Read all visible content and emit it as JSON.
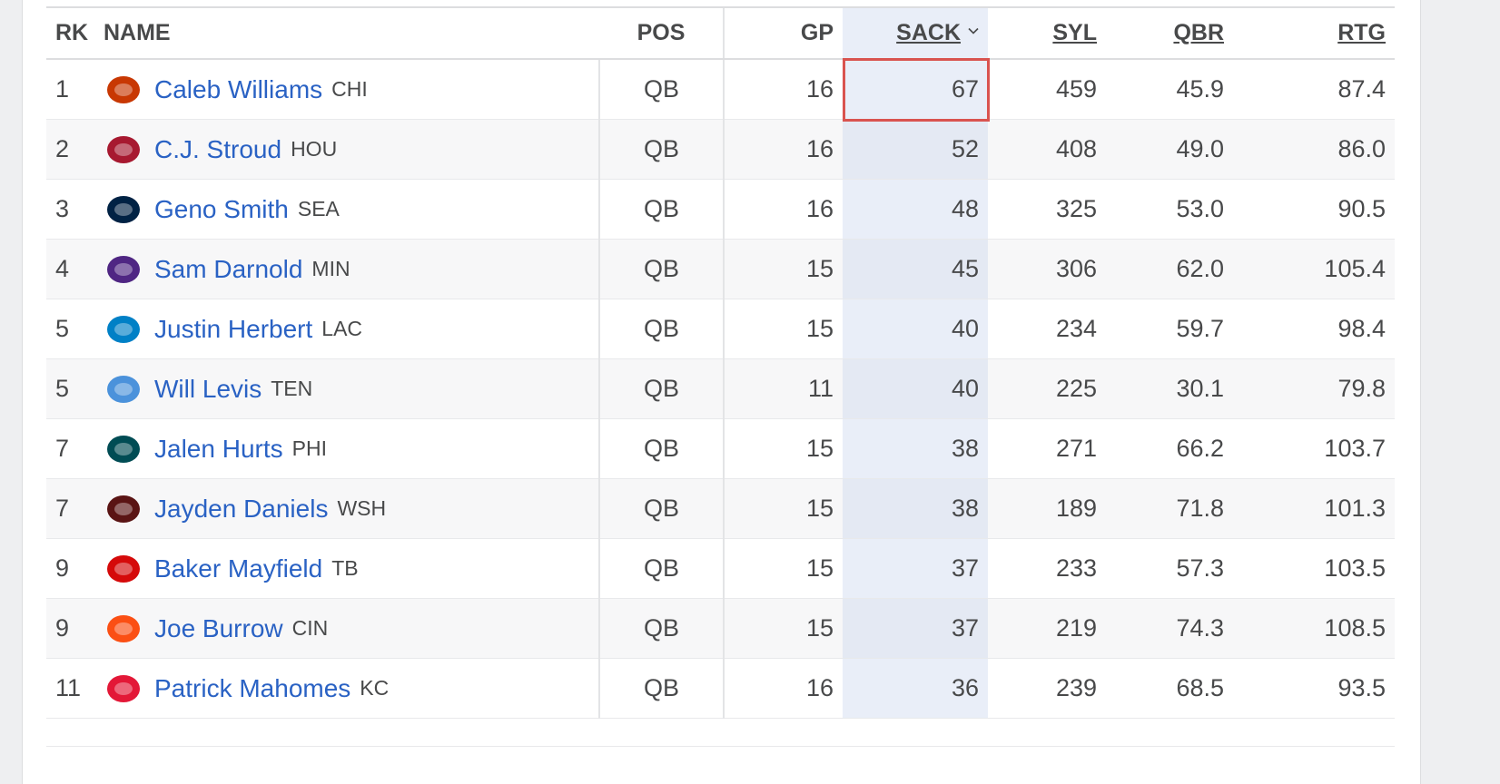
{
  "columns": {
    "rk": "RK",
    "name": "NAME",
    "pos": "POS",
    "gp": "GP",
    "sack": "SACK",
    "syl": "SYL",
    "qbr": "QBR",
    "rtg": "RTG"
  },
  "rows": [
    {
      "rk": "1",
      "player": "Caleb Williams",
      "team": "CHI",
      "pos": "QB",
      "gp": "16",
      "sack": "67",
      "syl": "459",
      "qbr": "45.9",
      "rtg": "87.4",
      "logo_icon": "bears-logo-icon",
      "color": "#c83803"
    },
    {
      "rk": "2",
      "player": "C.J. Stroud",
      "team": "HOU",
      "pos": "QB",
      "gp": "16",
      "sack": "52",
      "syl": "408",
      "qbr": "49.0",
      "rtg": "86.0",
      "logo_icon": "texans-logo-icon",
      "color": "#a71930"
    },
    {
      "rk": "3",
      "player": "Geno Smith",
      "team": "SEA",
      "pos": "QB",
      "gp": "16",
      "sack": "48",
      "syl": "325",
      "qbr": "53.0",
      "rtg": "90.5",
      "logo_icon": "seahawks-logo-icon",
      "color": "#002244"
    },
    {
      "rk": "4",
      "player": "Sam Darnold",
      "team": "MIN",
      "pos": "QB",
      "gp": "15",
      "sack": "45",
      "syl": "306",
      "qbr": "62.0",
      "rtg": "105.4",
      "logo_icon": "vikings-logo-icon",
      "color": "#4f2683"
    },
    {
      "rk": "5",
      "player": "Justin Herbert",
      "team": "LAC",
      "pos": "QB",
      "gp": "15",
      "sack": "40",
      "syl": "234",
      "qbr": "59.7",
      "rtg": "98.4",
      "logo_icon": "chargers-logo-icon",
      "color": "#0080c6"
    },
    {
      "rk": "5",
      "player": "Will Levis",
      "team": "TEN",
      "pos": "QB",
      "gp": "11",
      "sack": "40",
      "syl": "225",
      "qbr": "30.1",
      "rtg": "79.8",
      "logo_icon": "titans-logo-icon",
      "color": "#4b92db"
    },
    {
      "rk": "7",
      "player": "Jalen Hurts",
      "team": "PHI",
      "pos": "QB",
      "gp": "15",
      "sack": "38",
      "syl": "271",
      "qbr": "66.2",
      "rtg": "103.7",
      "logo_icon": "eagles-logo-icon",
      "color": "#004c54"
    },
    {
      "rk": "7",
      "player": "Jayden Daniels",
      "team": "WSH",
      "pos": "QB",
      "gp": "15",
      "sack": "38",
      "syl": "189",
      "qbr": "71.8",
      "rtg": "101.3",
      "logo_icon": "commanders-logo-icon",
      "color": "#5a1414"
    },
    {
      "rk": "9",
      "player": "Baker Mayfield",
      "team": "TB",
      "pos": "QB",
      "gp": "15",
      "sack": "37",
      "syl": "233",
      "qbr": "57.3",
      "rtg": "103.5",
      "logo_icon": "buccaneers-logo-icon",
      "color": "#d50a0a"
    },
    {
      "rk": "9",
      "player": "Joe Burrow",
      "team": "CIN",
      "pos": "QB",
      "gp": "15",
      "sack": "37",
      "syl": "219",
      "qbr": "74.3",
      "rtg": "108.5",
      "logo_icon": "bengals-logo-icon",
      "color": "#fb4f14"
    },
    {
      "rk": "11",
      "player": "Patrick Mahomes",
      "team": "KC",
      "pos": "QB",
      "gp": "16",
      "sack": "36",
      "syl": "239",
      "qbr": "68.5",
      "rtg": "93.5",
      "logo_icon": "chiefs-logo-icon",
      "color": "#e31837"
    }
  ]
}
